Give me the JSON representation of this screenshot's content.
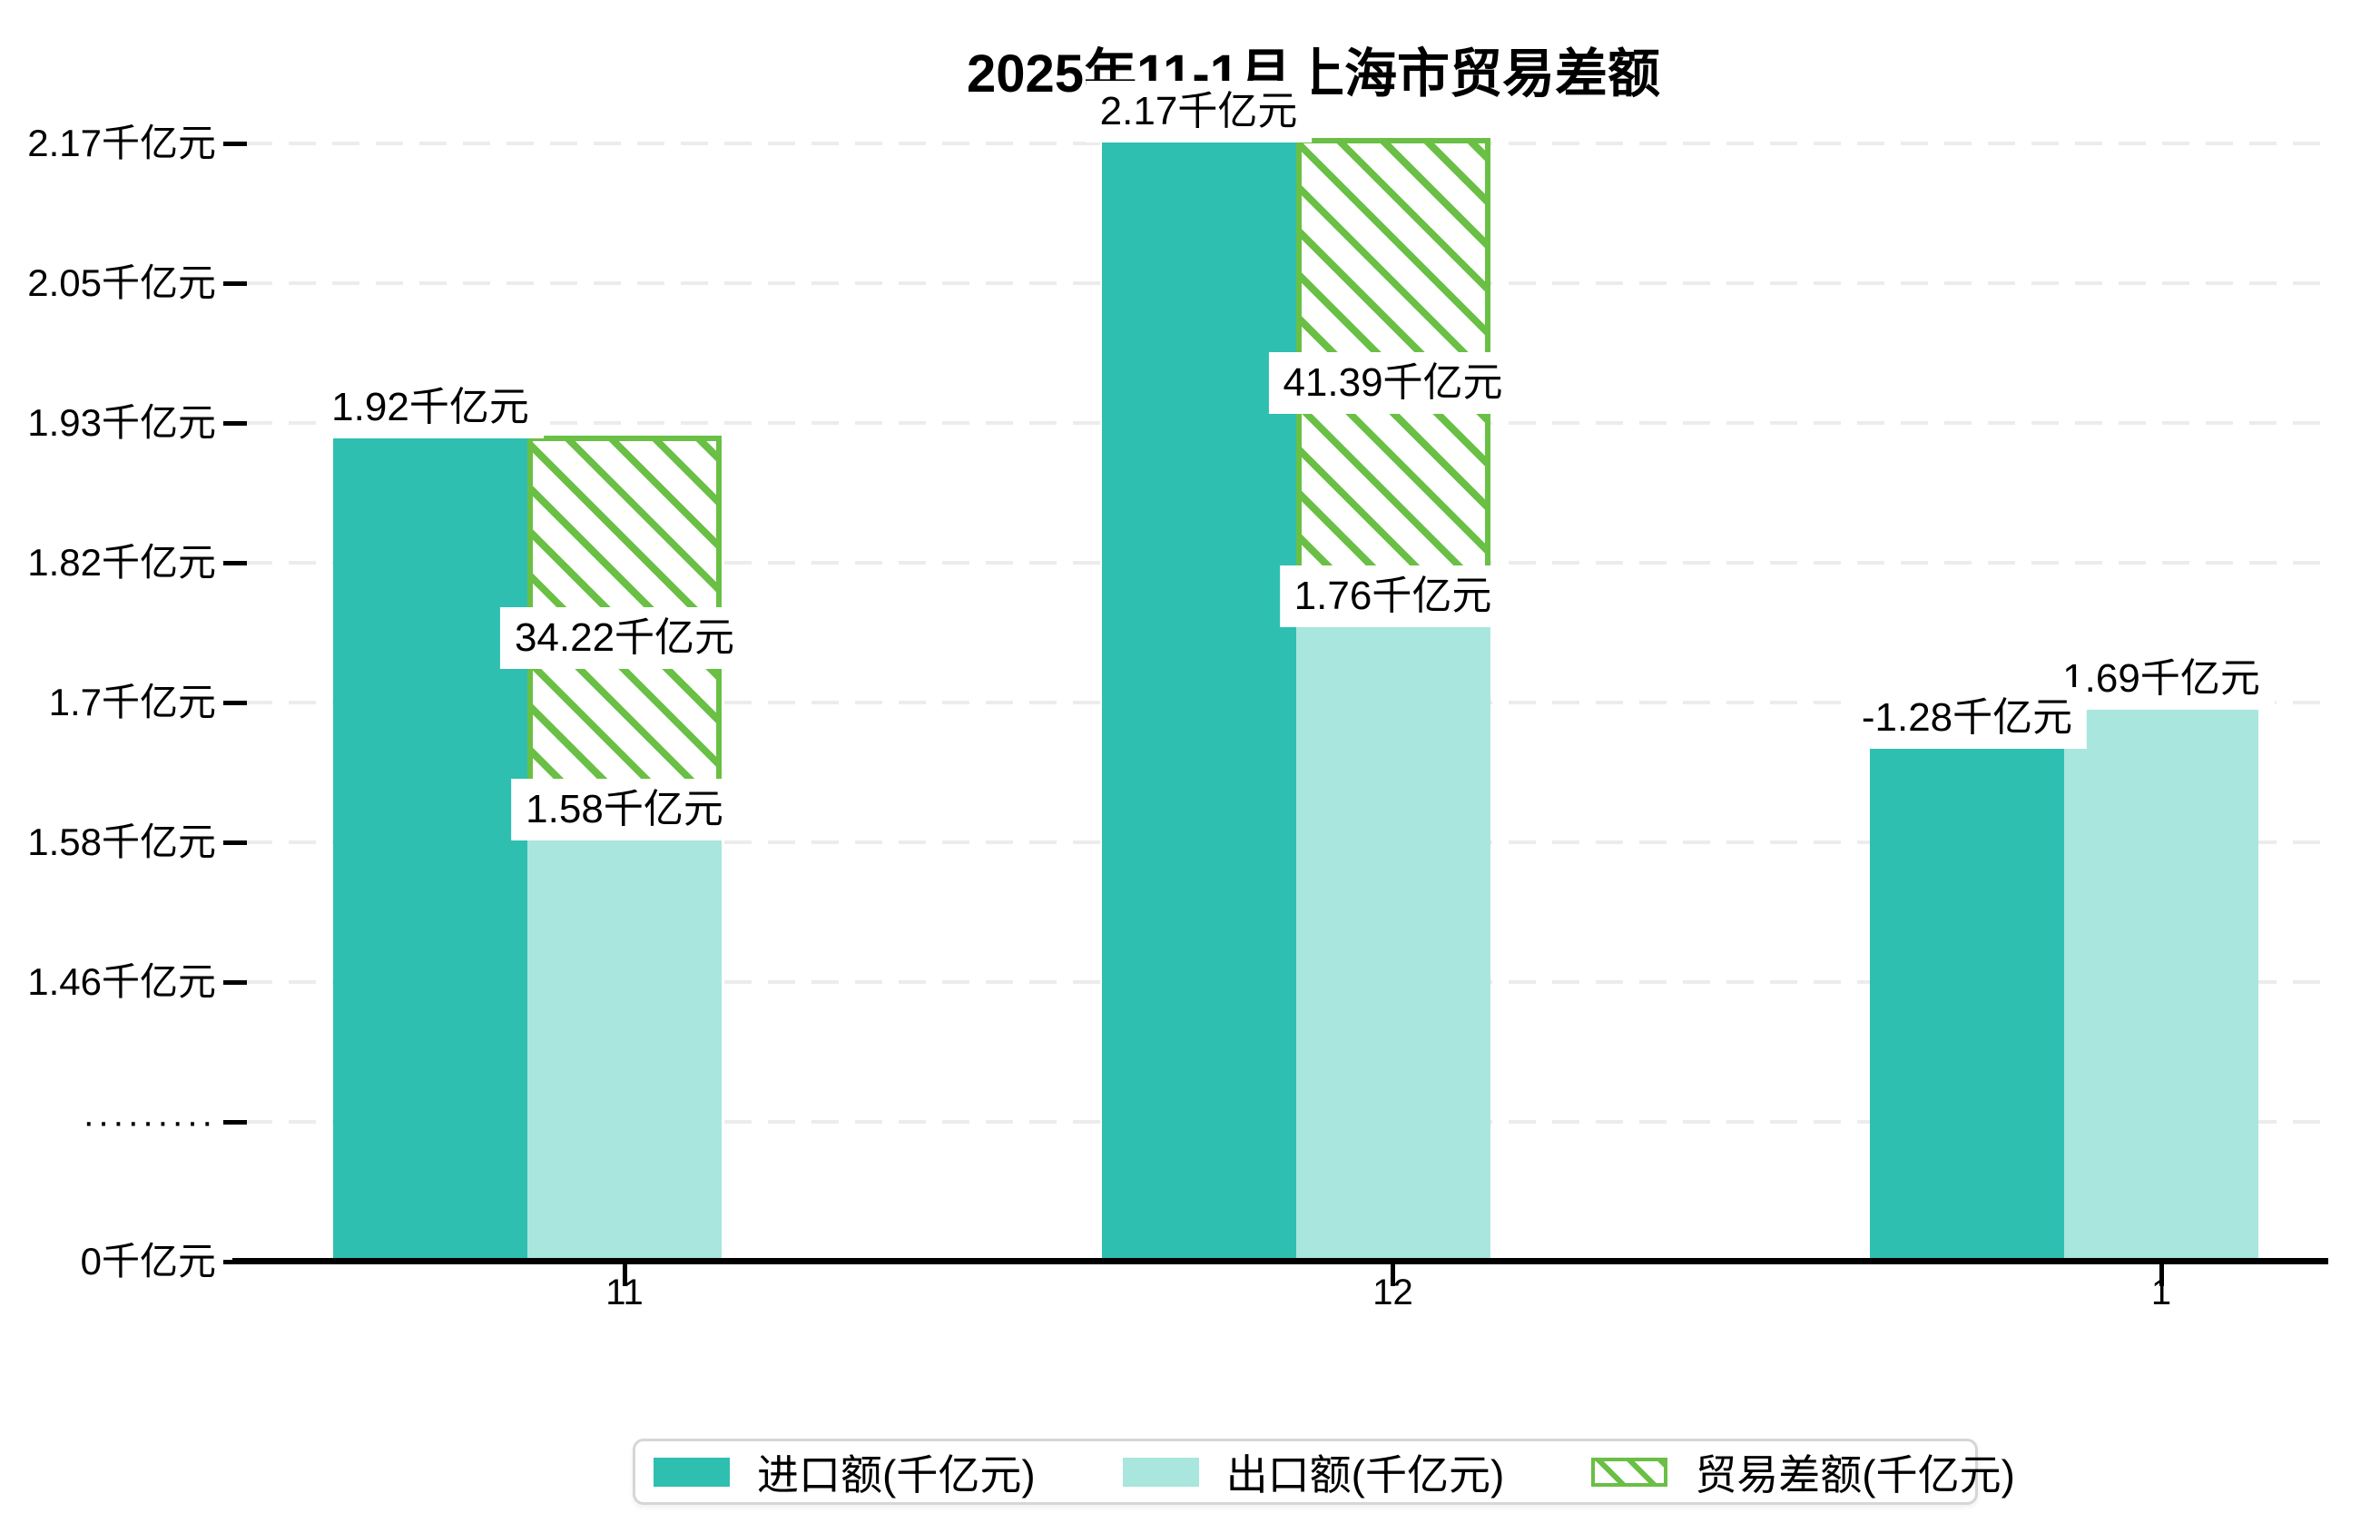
{
  "title": "2025年11-1月上海市贸易差额",
  "colors": {
    "import_bar": "#2fbfb1",
    "export_bar": "#a9e6dd",
    "balance_hatch": "#6abf45",
    "gridline": "#ececec",
    "axis": "#000000",
    "legend_border": "#d6d6d6",
    "label_text": "#000000",
    "background": "#ffffff"
  },
  "chart_data": {
    "type": "bar",
    "title": "2025年11-1月上海市贸易差额",
    "categories": [
      "11",
      "12",
      "1"
    ],
    "unit": "千亿元",
    "series": [
      {
        "name": "进口额(千亿元)",
        "style": "solid",
        "color": "#2fbfb1",
        "values": [
          1.92,
          2.17,
          1.68
        ],
        "labels": [
          "1.92千亿元",
          "2.17千亿元",
          ""
        ]
      },
      {
        "name": "出口额(千亿元)",
        "style": "solid",
        "color": "#a9e6dd",
        "values": [
          1.58,
          1.76,
          1.69
        ],
        "labels": [
          "1.58千亿元",
          "1.76千亿元",
          "1.69千亿元"
        ]
      },
      {
        "name": "贸易差额(千亿元)",
        "style": "hatched",
        "color": "#6abf45",
        "values": [
          34.22,
          41.39,
          -1.28
        ],
        "labels": [
          "34.22千亿元",
          "41.39千亿元",
          "-1.28千亿元"
        ],
        "value_scale_to_axis": 0.01,
        "drawn_as": "stacked on top of export bar when positive"
      }
    ],
    "y_axis": {
      "tick_labels_bottom_to_top": [
        "0千亿元",
        "·········",
        "1.46千亿元",
        "1.58千亿元",
        "1.7千亿元",
        "1.82千亿元",
        "1.93千亿元",
        "2.05千亿元",
        "2.17千亿元"
      ],
      "axis_break_marker": "·········",
      "ylim_top_value": 2.17
    },
    "x_axis": {
      "tick_labels": [
        "11",
        "12",
        "1"
      ]
    },
    "grid": {
      "horizontal": true,
      "dashed": true
    },
    "legend": {
      "position": "bottom",
      "items": [
        {
          "label": "进口额(千亿元)",
          "swatch": "solid-teal"
        },
        {
          "label": "出口额(千亿元)",
          "swatch": "solid-light-teal"
        },
        {
          "label": "贸易差额(千亿元)",
          "swatch": "hatched-green"
        }
      ]
    }
  }
}
